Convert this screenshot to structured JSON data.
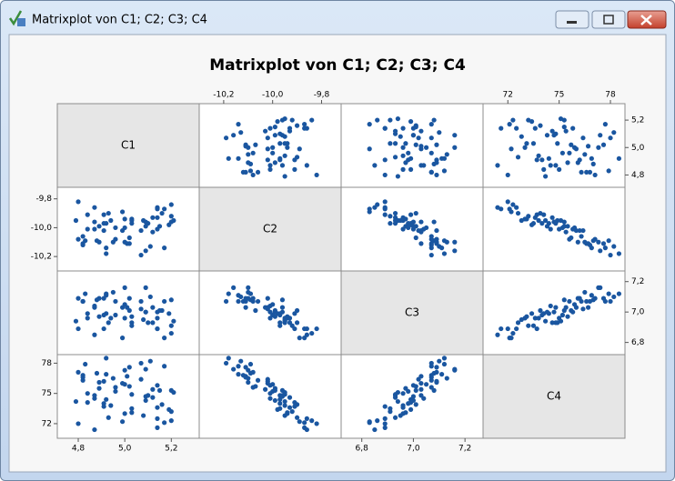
{
  "window": {
    "title": "Matrixplot von C1; C2; C3; C4"
  },
  "chart_data": {
    "type": "scatter-matrix",
    "title": "Matrixplot von C1; C2; C3; C4",
    "color": "#1a56a0",
    "variables": [
      {
        "name": "C1",
        "lim": [
          4.71,
          5.32
        ],
        "ticks": [
          {
            "value": 4.8,
            "label": "4,8"
          },
          {
            "value": 5.0,
            "label": "5,0"
          },
          {
            "value": 5.2,
            "label": "5,2"
          }
        ],
        "values": [
          4.8,
          5.03,
          5.2,
          4.99,
          4.91,
          5.07,
          4.92,
          5.0,
          5.14,
          4.82,
          5.16,
          4.84,
          5.02,
          5.08,
          4.89,
          5.09,
          4.95,
          5.2,
          4.92,
          4.84,
          5.02,
          5.14,
          4.89,
          5.1,
          5.0,
          4.91,
          5.12,
          4.8,
          5.01,
          5.09,
          4.83,
          5.19,
          4.96,
          5.12,
          4.82,
          5.0,
          5.14,
          4.91,
          4.88,
          5.2,
          4.96,
          5.03,
          4.82,
          5.14,
          5.11,
          4.87,
          4.99,
          4.93,
          5.21,
          4.87,
          5.09,
          4.79,
          5.07,
          5.03,
          5.15,
          4.94,
          5.17,
          4.87,
          4.92,
          5.17
        ]
      },
      {
        "name": "C2",
        "lim": [
          -10.3,
          -9.72
        ],
        "ticks": [
          {
            "value": -10.2,
            "label": "-10,2"
          },
          {
            "value": -10.0,
            "label": "-10,0"
          },
          {
            "value": -9.8,
            "label": "-9,8"
          }
        ],
        "values": [
          -10.08,
          -9.97,
          -9.96,
          -9.89,
          -10.02,
          -10.19,
          -9.97,
          -10.0,
          -9.87,
          -10.12,
          -9.9,
          -10.01,
          -10.11,
          -9.95,
          -9.99,
          -9.96,
          -10.1,
          -9.92,
          -10.18,
          -9.91,
          -10.07,
          -9.86,
          -10.1,
          -9.97,
          -10.1,
          -9.91,
          -10.03,
          -9.82,
          -10.11,
          -9.99,
          -10.09,
          -9.98,
          -10.0,
          -9.93,
          -10.06,
          -9.94,
          -10.01,
          -9.97,
          -10.09,
          -9.84,
          -10.08,
          -9.95,
          -10.11,
          -9.93,
          -10.13,
          -10.01,
          -10.02,
          -9.9,
          -9.95,
          -9.86,
          -10.16,
          -9.95,
          -10.02,
          -9.94,
          -9.99,
          -9.95,
          -10.14,
          -9.96,
          -10.14,
          -9.87
        ]
      },
      {
        "name": "C3",
        "lim": [
          6.72,
          7.27
        ],
        "ticks": [
          {
            "value": 6.8,
            "label": "6,8"
          },
          {
            "value": 7.0,
            "label": "7,0"
          },
          {
            "value": 7.2,
            "label": "7,2"
          }
        ],
        "values": [
          7.09,
          6.91,
          7.08,
          6.83,
          7.09,
          7.07,
          6.99,
          7.05,
          6.89,
          7.07,
          7.01,
          6.96,
          7.09,
          6.95,
          6.97,
          7.0,
          7.13,
          6.91,
          7.12,
          6.99,
          7.01,
          6.89,
          7.09,
          6.93,
          7.16,
          6.89,
          7.03,
          6.89,
          7.03,
          7.0,
          7.12,
          6.99,
          6.98,
          6.93,
          7.07,
          6.96,
          7.0,
          6.98,
          7.08,
          6.86,
          7.07,
          6.93,
          7.07,
          6.96,
          7.1,
          7.04,
          7.03,
          6.93,
          6.94,
          6.85,
          7.16,
          6.94,
          7.02,
          6.97,
          7.01,
          6.96,
          7.07,
          7.03,
          7.11,
          6.83
        ]
      },
      {
        "name": "C4",
        "lim": [
          70.55,
          78.85
        ],
        "ticks": [
          72,
          75,
          78
        ],
        "values": [
          77.1,
          73.5,
          75.3,
          72.2,
          76.2,
          78.0,
          74.4,
          75.9,
          71.6,
          76.8,
          73.9,
          75.0,
          77.6,
          72.8,
          75.5,
          74.7,
          76.5,
          73.2,
          78.5,
          74.1,
          75.7,
          72.5,
          76.1,
          74.8,
          77.3,
          73.7,
          75.4,
          72.0,
          76.7,
          74.3,
          77.9,
          73.4,
          75.2,
          74.6,
          76.3,
          73.0,
          75.8,
          74.0,
          77.0,
          72.3,
          75.6,
          74.9,
          76.6,
          73.6,
          78.2,
          74.5,
          76.0,
          72.6,
          75.1,
          71.4,
          77.4,
          74.2,
          76.4,
          73.1,
          75.3,
          73.8,
          77.7,
          74.8,
          76.9,
          72.1
        ]
      }
    ]
  }
}
